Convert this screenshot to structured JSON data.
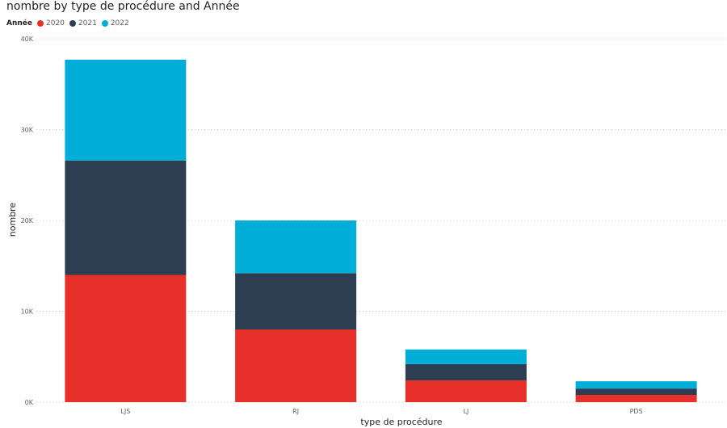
{
  "chart_data": {
    "type": "bar",
    "stacked": true,
    "title": "nombre by type de procédure and Année",
    "xlabel": "type de procédure",
    "ylabel": "nombre",
    "ylim": [
      0,
      40000
    ],
    "yticks": [
      {
        "value": 0,
        "label": "0K"
      },
      {
        "value": 10000,
        "label": "10K"
      },
      {
        "value": 20000,
        "label": "20K"
      },
      {
        "value": 30000,
        "label": "30K"
      },
      {
        "value": 40000,
        "label": "40K"
      }
    ],
    "categories": [
      "LJS",
      "RJ",
      "LJ",
      "PDS"
    ],
    "legend_title": "Année",
    "legend_position": "top-left",
    "grid": true,
    "series": [
      {
        "name": "2020",
        "color": "#E8302A",
        "values": [
          14000,
          8000,
          2400,
          800
        ]
      },
      {
        "name": "2021",
        "color": "#2E3E52",
        "values": [
          12600,
          6200,
          1800,
          700
        ]
      },
      {
        "name": "2022",
        "color": "#00AED8",
        "values": [
          11100,
          5800,
          1600,
          800
        ]
      }
    ]
  }
}
